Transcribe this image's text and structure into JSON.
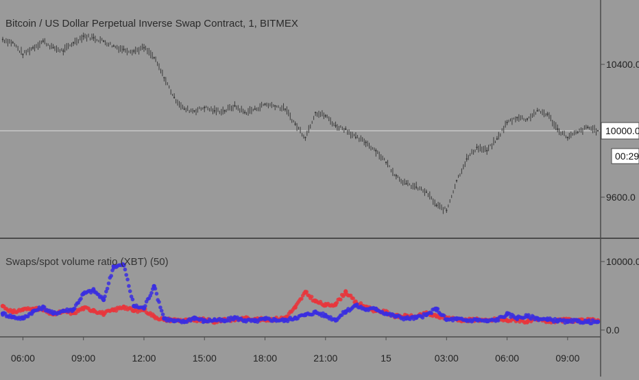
{
  "colors": {
    "background": "#9a9a9a",
    "price_wick": "#3a3a3a",
    "divider": "#4a4a4a",
    "last_price_line": "#c8c8c8",
    "axis_text": "#222222",
    "label_box": "#ffffff",
    "swap_series": "#e8363c",
    "spot_series": "#3a2ee0"
  },
  "chart": {
    "title": "Bitcoin / US Dollar Perpetual Inverse Swap Contract, 1, BITMEX",
    "last_price_label": "10000.0",
    "countdown_label": "00:29",
    "indicator_title": "Swaps/spot volume ratio (XBT) (50)"
  },
  "chart_data": [
    {
      "type": "line",
      "title": "Bitcoin / US Dollar Perpetual Inverse Swap Contract, 1, BITMEX",
      "x": [
        "05:00",
        "05:30",
        "06:00",
        "06:30",
        "07:00",
        "07:30",
        "08:00",
        "08:30",
        "09:00",
        "09:30",
        "10:00",
        "10:30",
        "11:00",
        "11:30",
        "12:00",
        "12:30",
        "13:00",
        "13:30",
        "14:00",
        "14:30",
        "15:00",
        "15:30",
        "16:00",
        "16:30",
        "17:00",
        "17:30",
        "18:00",
        "18:30",
        "19:00",
        "19:30",
        "20:00",
        "20:30",
        "21:00",
        "21:30",
        "22:00",
        "22:30",
        "23:00",
        "23:30",
        "15",
        "00:30",
        "01:00",
        "01:30",
        "02:00",
        "02:30",
        "03:00",
        "03:30",
        "04:00",
        "04:30",
        "05:00",
        "05:30",
        "06:00",
        "06:30",
        "07:00",
        "07:30",
        "08:00",
        "08:30",
        "09:00",
        "09:30",
        "10:00",
        "10:30"
      ],
      "values": [
        10550,
        10530,
        10460,
        10500,
        10540,
        10500,
        10480,
        10530,
        10570,
        10560,
        10540,
        10510,
        10490,
        10480,
        10500,
        10440,
        10320,
        10200,
        10130,
        10120,
        10140,
        10120,
        10120,
        10150,
        10110,
        10130,
        10160,
        10150,
        10130,
        10040,
        9960,
        10110,
        10090,
        10030,
        10010,
        9960,
        9930,
        9880,
        9810,
        9730,
        9680,
        9660,
        9630,
        9550,
        9520,
        9700,
        9830,
        9900,
        9880,
        9950,
        10050,
        10080,
        10070,
        10120,
        10100,
        10010,
        9960,
        9990,
        10020,
        10000
      ],
      "y_ticks": [
        "10400.0",
        "10000.0",
        "9600.0"
      ],
      "last": 10000.0
    },
    {
      "type": "line",
      "title": "Swaps/spot volume ratio (XBT) (50)",
      "x": [
        "05:00",
        "05:30",
        "06:00",
        "06:30",
        "07:00",
        "07:30",
        "08:00",
        "08:30",
        "09:00",
        "09:30",
        "10:00",
        "10:30",
        "11:00",
        "11:30",
        "12:00",
        "12:30",
        "13:00",
        "13:30",
        "14:00",
        "14:30",
        "15:00",
        "15:30",
        "16:00",
        "16:30",
        "17:00",
        "17:30",
        "18:00",
        "18:30",
        "19:00",
        "19:30",
        "20:00",
        "20:30",
        "21:00",
        "21:30",
        "22:00",
        "22:30",
        "23:00",
        "23:30",
        "15",
        "00:30",
        "01:00",
        "01:30",
        "02:00",
        "02:30",
        "03:00",
        "03:30",
        "04:00",
        "04:30",
        "05:00",
        "05:30",
        "06:00",
        "06:30",
        "07:00",
        "07:30",
        "08:00",
        "08:30",
        "09:00",
        "09:30",
        "10:00",
        "10:30"
      ],
      "series": [
        {
          "values": [
            3500,
            2600,
            3000,
            3100,
            2900,
            2300,
            2700,
            2500,
            3200,
            2900,
            2400,
            2900,
            3400,
            2800,
            3000,
            2000,
            1500,
            1500,
            1400,
            1400,
            1500,
            1200,
            1600,
            1500,
            1700,
            1600,
            1500,
            1600,
            1800,
            3300,
            5500,
            4200,
            3600,
            3800,
            5600,
            4000,
            3400,
            2800,
            2600,
            2000,
            2000,
            1900,
            2400,
            2000,
            1800,
            1600,
            1400,
            1600,
            1300,
            1600,
            1400,
            1500,
            1200,
            1500,
            1300,
            1300,
            1500,
            1300,
            1400,
            1400
          ]
        },
        {
          "values": [
            2400,
            1900,
            1700,
            2700,
            3300,
            2400,
            2800,
            3000,
            5300,
            5800,
            4400,
            9300,
            9500,
            3500,
            3200,
            6400,
            1700,
            1300,
            1200,
            1800,
            1300,
            1500,
            1300,
            1800,
            1400,
            1300,
            1600,
            1500,
            1400,
            1800,
            2200,
            2600,
            2100,
            1500,
            2700,
            3600,
            3000,
            3100,
            2400,
            2000,
            1700,
            1800,
            2200,
            3100,
            1500,
            1600,
            1400,
            1500,
            1300,
            1500,
            2300,
            1800,
            2000,
            1700,
            1500,
            1400,
            1200,
            1300,
            1200,
            1200
          ]
        }
      ],
      "y_ticks": [
        "10000.0",
        "0.0"
      ]
    }
  ],
  "time_axis": {
    "labels": [
      "06:00",
      "09:00",
      "12:00",
      "15:00",
      "18:00",
      "21:00",
      "15",
      "03:00",
      "06:00",
      "09:00"
    ]
  }
}
